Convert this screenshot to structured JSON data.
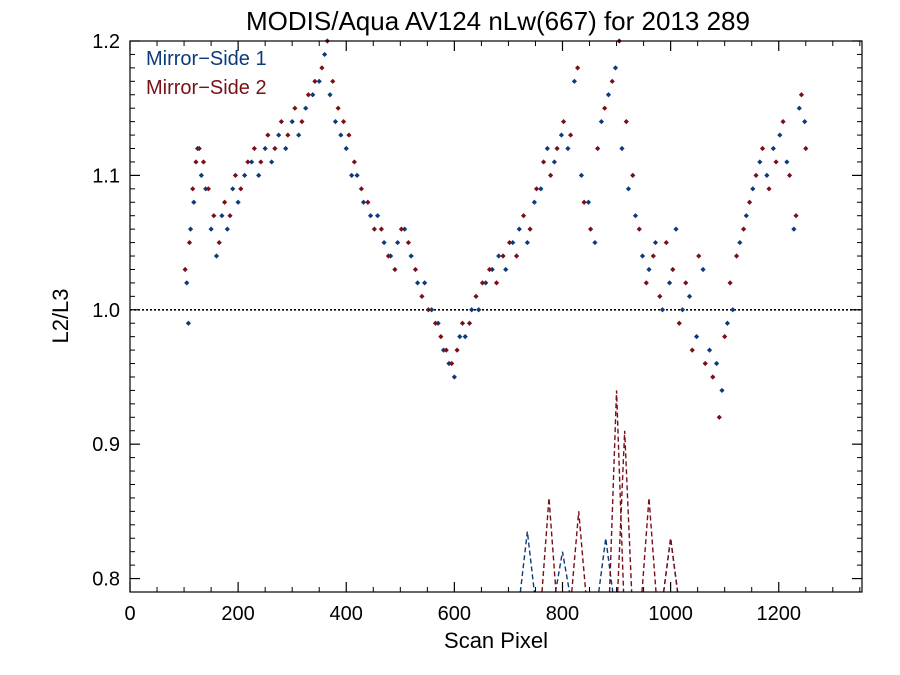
{
  "chart_data": {
    "type": "scatter",
    "title": "MODIS/Aqua AV124 nLw(667) for 2013 289",
    "xlabel": "Scan Pixel",
    "ylabel": "L2/L3",
    "xlim": [
      0,
      1354
    ],
    "ylim": [
      0.79,
      1.2
    ],
    "xticks": [
      0,
      200,
      400,
      600,
      800,
      1000,
      1200
    ],
    "xtick_labels": [
      "0",
      "200",
      "400",
      "600",
      "800",
      "1000",
      "1200"
    ],
    "yticks": [
      0.8,
      0.9,
      1.0,
      1.1,
      1.2
    ],
    "ytick_labels": [
      "0.8",
      "0.9",
      "1.0",
      "1.1",
      "1.2"
    ],
    "reference_line": 1.0,
    "legend_position": "top-left",
    "series": [
      {
        "name": "Mirror−Side 1",
        "color": "#0b3b7a",
        "marker": "diamond",
        "points": [
          [
            105,
            1.02
          ],
          [
            108,
            0.99
          ],
          [
            112,
            1.06
          ],
          [
            118,
            1.08
          ],
          [
            125,
            1.12
          ],
          [
            132,
            1.1
          ],
          [
            140,
            1.09
          ],
          [
            150,
            1.06
          ],
          [
            160,
            1.04
          ],
          [
            170,
            1.07
          ],
          [
            180,
            1.06
          ],
          [
            190,
            1.09
          ],
          [
            200,
            1.08
          ],
          [
            212,
            1.1
          ],
          [
            225,
            1.11
          ],
          [
            238,
            1.1
          ],
          [
            250,
            1.12
          ],
          [
            262,
            1.11
          ],
          [
            275,
            1.13
          ],
          [
            288,
            1.12
          ],
          [
            300,
            1.14
          ],
          [
            312,
            1.13
          ],
          [
            325,
            1.15
          ],
          [
            338,
            1.16
          ],
          [
            350,
            1.17
          ],
          [
            360,
            1.19
          ],
          [
            370,
            1.16
          ],
          [
            380,
            1.14
          ],
          [
            390,
            1.13
          ],
          [
            400,
            1.12
          ],
          [
            410,
            1.1
          ],
          [
            420,
            1.1
          ],
          [
            432,
            1.08
          ],
          [
            445,
            1.07
          ],
          [
            458,
            1.07
          ],
          [
            470,
            1.05
          ],
          [
            482,
            1.04
          ],
          [
            495,
            1.05
          ],
          [
            508,
            1.06
          ],
          [
            520,
            1.04
          ],
          [
            532,
            1.02
          ],
          [
            545,
            1.02
          ],
          [
            558,
            1.0
          ],
          [
            570,
            0.99
          ],
          [
            580,
            0.97
          ],
          [
            590,
            0.96
          ],
          [
            600,
            0.95
          ],
          [
            610,
            0.98
          ],
          [
            620,
            0.98
          ],
          [
            632,
            1.0
          ],
          [
            645,
            1.0
          ],
          [
            658,
            1.02
          ],
          [
            670,
            1.03
          ],
          [
            682,
            1.04
          ],
          [
            695,
            1.03
          ],
          [
            708,
            1.05
          ],
          [
            720,
            1.06
          ],
          [
            735,
            1.05
          ],
          [
            748,
            1.08
          ],
          [
            760,
            1.09
          ],
          [
            772,
            1.12
          ],
          [
            785,
            1.11
          ],
          [
            798,
            1.13
          ],
          [
            810,
            1.12
          ],
          [
            822,
            1.17
          ],
          [
            835,
            1.1
          ],
          [
            848,
            1.08
          ],
          [
            860,
            1.05
          ],
          [
            872,
            1.14
          ],
          [
            885,
            1.16
          ],
          [
            898,
            1.18
          ],
          [
            910,
            1.12
          ],
          [
            922,
            1.09
          ],
          [
            935,
            1.07
          ],
          [
            948,
            1.04
          ],
          [
            960,
            1.03
          ],
          [
            972,
            1.05
          ],
          [
            985,
            1.0
          ],
          [
            998,
            1.02
          ],
          [
            1010,
            1.06
          ],
          [
            1022,
            1.0
          ],
          [
            1035,
            1.01
          ],
          [
            1048,
            0.98
          ],
          [
            1060,
            1.03
          ],
          [
            1072,
            0.97
          ],
          [
            1085,
            0.96
          ],
          [
            1095,
            0.94
          ],
          [
            1105,
            0.99
          ],
          [
            1115,
            1.0
          ],
          [
            1128,
            1.05
          ],
          [
            1140,
            1.07
          ],
          [
            1152,
            1.09
          ],
          [
            1165,
            1.11
          ],
          [
            1178,
            1.1
          ],
          [
            1190,
            1.12
          ],
          [
            1202,
            1.13
          ],
          [
            1215,
            1.11
          ],
          [
            1228,
            1.06
          ],
          [
            1238,
            1.15
          ],
          [
            1248,
            1.14
          ]
        ],
        "dashed_peaks": [
          [
            735,
            0.835
          ],
          [
            800,
            0.82
          ],
          [
            880,
            0.83
          ],
          [
            1000,
            0.83
          ]
        ]
      },
      {
        "name": "Mirror−Side 2",
        "color": "#7a0f18",
        "marker": "diamond",
        "points": [
          [
            102,
            1.03
          ],
          [
            110,
            1.05
          ],
          [
            116,
            1.09
          ],
          [
            122,
            1.11
          ],
          [
            128,
            1.12
          ],
          [
            136,
            1.11
          ],
          [
            145,
            1.09
          ],
          [
            155,
            1.07
          ],
          [
            165,
            1.05
          ],
          [
            175,
            1.08
          ],
          [
            185,
            1.07
          ],
          [
            195,
            1.1
          ],
          [
            205,
            1.09
          ],
          [
            218,
            1.11
          ],
          [
            230,
            1.12
          ],
          [
            242,
            1.11
          ],
          [
            255,
            1.13
          ],
          [
            268,
            1.12
          ],
          [
            280,
            1.14
          ],
          [
            292,
            1.13
          ],
          [
            305,
            1.15
          ],
          [
            318,
            1.14
          ],
          [
            330,
            1.16
          ],
          [
            342,
            1.17
          ],
          [
            355,
            1.18
          ],
          [
            365,
            1.2
          ],
          [
            375,
            1.17
          ],
          [
            385,
            1.15
          ],
          [
            395,
            1.14
          ],
          [
            405,
            1.13
          ],
          [
            415,
            1.11
          ],
          [
            428,
            1.09
          ],
          [
            440,
            1.08
          ],
          [
            452,
            1.06
          ],
          [
            465,
            1.06
          ],
          [
            478,
            1.04
          ],
          [
            490,
            1.03
          ],
          [
            502,
            1.06
          ],
          [
            515,
            1.05
          ],
          [
            528,
            1.03
          ],
          [
            540,
            1.01
          ],
          [
            552,
            1.0
          ],
          [
            565,
            0.99
          ],
          [
            575,
            0.98
          ],
          [
            585,
            0.97
          ],
          [
            595,
            0.96
          ],
          [
            605,
            0.97
          ],
          [
            615,
            0.99
          ],
          [
            628,
            0.99
          ],
          [
            640,
            1.01
          ],
          [
            652,
            1.02
          ],
          [
            665,
            1.03
          ],
          [
            678,
            1.02
          ],
          [
            690,
            1.04
          ],
          [
            702,
            1.05
          ],
          [
            715,
            1.04
          ],
          [
            728,
            1.07
          ],
          [
            740,
            1.06
          ],
          [
            752,
            1.09
          ],
          [
            765,
            1.11
          ],
          [
            778,
            1.1
          ],
          [
            790,
            1.12
          ],
          [
            802,
            1.14
          ],
          [
            815,
            1.13
          ],
          [
            828,
            1.18
          ],
          [
            840,
            1.08
          ],
          [
            852,
            1.06
          ],
          [
            865,
            1.12
          ],
          [
            878,
            1.15
          ],
          [
            892,
            1.17
          ],
          [
            905,
            1.2
          ],
          [
            918,
            1.14
          ],
          [
            930,
            1.1
          ],
          [
            942,
            1.06
          ],
          [
            955,
            1.02
          ],
          [
            968,
            1.04
          ],
          [
            980,
            1.01
          ],
          [
            992,
            1.05
          ],
          [
            1004,
            1.03
          ],
          [
            1016,
            0.99
          ],
          [
            1028,
            1.02
          ],
          [
            1040,
            0.97
          ],
          [
            1052,
            1.04
          ],
          [
            1064,
            0.96
          ],
          [
            1078,
            0.95
          ],
          [
            1090,
            0.92
          ],
          [
            1100,
            0.98
          ],
          [
            1110,
            1.02
          ],
          [
            1122,
            1.04
          ],
          [
            1135,
            1.06
          ],
          [
            1146,
            1.08
          ],
          [
            1158,
            1.1
          ],
          [
            1170,
            1.12
          ],
          [
            1182,
            1.09
          ],
          [
            1195,
            1.11
          ],
          [
            1208,
            1.14
          ],
          [
            1220,
            1.1
          ],
          [
            1232,
            1.07
          ],
          [
            1242,
            1.16
          ],
          [
            1250,
            1.12
          ]
        ],
        "dashed_peaks": [
          [
            775,
            0.86
          ],
          [
            830,
            0.85
          ],
          [
            900,
            0.94
          ],
          [
            915,
            0.91
          ],
          [
            960,
            0.86
          ],
          [
            1000,
            0.83
          ]
        ]
      }
    ]
  }
}
